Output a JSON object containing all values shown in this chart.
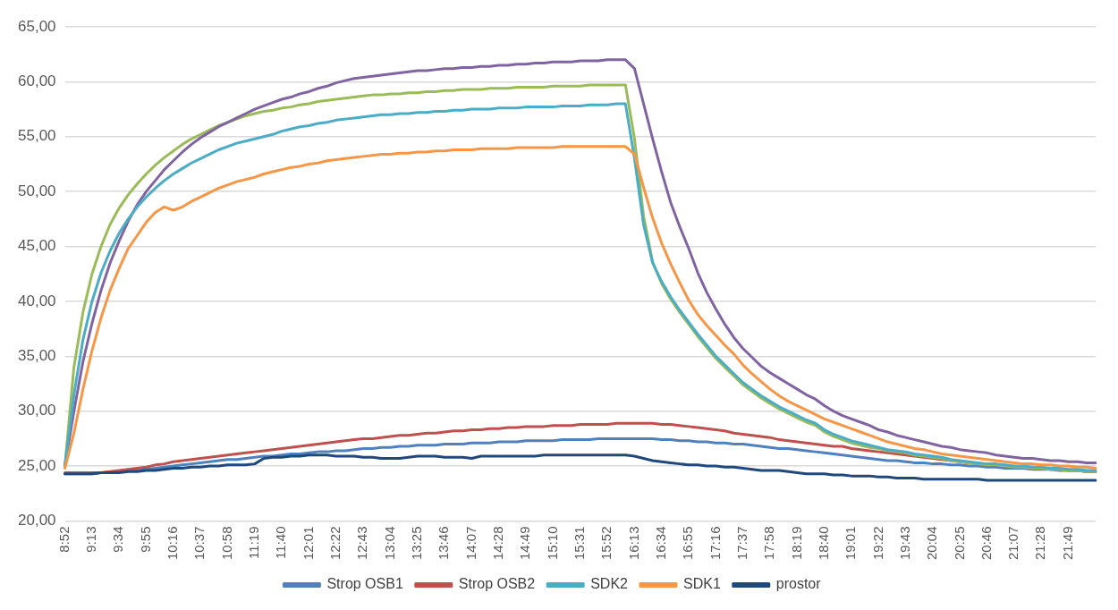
{
  "chart_data": {
    "type": "line",
    "categories": [
      "8:52",
      null,
      null,
      "9:13",
      null,
      null,
      "9:34",
      null,
      null,
      "9:55",
      null,
      null,
      "10:16",
      null,
      null,
      "10:37",
      null,
      null,
      "10:58",
      null,
      null,
      "11:19",
      null,
      null,
      "11:40",
      null,
      null,
      "12:01",
      null,
      null,
      "12:22",
      null,
      null,
      "12:43",
      null,
      null,
      "13:04",
      null,
      null,
      "13:25",
      null,
      null,
      "13:46",
      null,
      null,
      "14:07",
      null,
      null,
      "14:28",
      null,
      null,
      "14:49",
      null,
      null,
      "15:10",
      null,
      null,
      "15:31",
      null,
      null,
      "15:52",
      null,
      null,
      "16:13",
      null,
      null,
      "16:34",
      null,
      null,
      "16:55",
      null,
      null,
      "17:16",
      null,
      null,
      "17:37",
      null,
      null,
      "17:58",
      null,
      null,
      "18:19",
      null,
      null,
      "18:40",
      null,
      null,
      "19:01",
      null,
      null,
      "19:22",
      null,
      null,
      "19:43",
      null,
      null,
      "20:04",
      null,
      null,
      "20:25",
      null,
      null,
      "20:46",
      null,
      null,
      "21:07",
      null,
      null,
      "21:28",
      null,
      null,
      "21:49",
      null,
      null,
      null
    ],
    "series": [
      {
        "name": "Strop OSB1",
        "color": "#4f81bd",
        "values": [
          24.3,
          24.3,
          24.3,
          24.3,
          24.4,
          24.4,
          24.5,
          24.6,
          24.6,
          24.7,
          24.8,
          24.9,
          25.0,
          25.1,
          25.2,
          25.3,
          25.4,
          25.5,
          25.6,
          25.6,
          25.7,
          25.8,
          25.9,
          25.9,
          26.0,
          26.1,
          26.1,
          26.2,
          26.3,
          26.3,
          26.4,
          26.4,
          26.5,
          26.6,
          26.6,
          26.7,
          26.7,
          26.8,
          26.8,
          26.9,
          26.9,
          26.9,
          27.0,
          27.0,
          27.0,
          27.1,
          27.1,
          27.1,
          27.2,
          27.2,
          27.2,
          27.3,
          27.3,
          27.3,
          27.3,
          27.4,
          27.4,
          27.4,
          27.4,
          27.5,
          27.5,
          27.5,
          27.5,
          27.5,
          27.5,
          27.5,
          27.4,
          27.4,
          27.3,
          27.3,
          27.2,
          27.2,
          27.1,
          27.1,
          27.0,
          27.0,
          26.9,
          26.8,
          26.7,
          26.6,
          26.6,
          26.5,
          26.4,
          26.3,
          26.2,
          26.1,
          26.0,
          25.9,
          25.8,
          25.7,
          25.6,
          25.5,
          25.5,
          25.4,
          25.3,
          25.3,
          25.2,
          25.2,
          25.1,
          25.1,
          25.0,
          25.0,
          24.9,
          24.9,
          24.8,
          24.8,
          24.8,
          24.7,
          24.7,
          24.7,
          24.6,
          24.6,
          24.6,
          24.5,
          24.5
        ]
      },
      {
        "name": "Strop OSB2",
        "color": "#c0504d",
        "values": [
          24.4,
          24.4,
          24.4,
          24.4,
          24.4,
          24.5,
          24.6,
          24.7,
          24.8,
          24.9,
          25.1,
          25.2,
          25.4,
          25.5,
          25.6,
          25.7,
          25.8,
          25.9,
          26.0,
          26.1,
          26.2,
          26.3,
          26.4,
          26.5,
          26.6,
          26.7,
          26.8,
          26.9,
          27.0,
          27.1,
          27.2,
          27.3,
          27.4,
          27.5,
          27.5,
          27.6,
          27.7,
          27.8,
          27.8,
          27.9,
          28.0,
          28.0,
          28.1,
          28.2,
          28.2,
          28.3,
          28.3,
          28.4,
          28.4,
          28.5,
          28.5,
          28.6,
          28.6,
          28.6,
          28.7,
          28.7,
          28.7,
          28.8,
          28.8,
          28.8,
          28.8,
          28.9,
          28.9,
          28.9,
          28.9,
          28.9,
          28.8,
          28.8,
          28.7,
          28.6,
          28.5,
          28.4,
          28.3,
          28.2,
          28.0,
          27.9,
          27.8,
          27.7,
          27.6,
          27.4,
          27.3,
          27.2,
          27.1,
          27.0,
          26.9,
          26.8,
          26.8,
          26.6,
          26.5,
          26.4,
          26.3,
          26.2,
          26.1,
          26.0,
          25.9,
          25.8,
          25.7,
          25.6,
          25.5,
          25.4,
          25.3,
          25.2,
          25.1,
          25.1,
          25.0,
          24.9,
          24.9,
          24.8,
          24.8,
          24.7,
          24.7,
          24.6,
          24.6,
          24.5,
          24.5
        ]
      },
      {
        "color": "#9bbb59",
        "values": [
          25.0,
          34.0,
          39.0,
          42.5,
          45.0,
          47.0,
          48.5,
          49.7,
          50.7,
          51.6,
          52.4,
          53.1,
          53.7,
          54.3,
          54.8,
          55.2,
          55.6,
          56.0,
          56.3,
          56.6,
          56.9,
          57.1,
          57.3,
          57.4,
          57.6,
          57.7,
          57.9,
          58.0,
          58.2,
          58.3,
          58.4,
          58.5,
          58.6,
          58.7,
          58.8,
          58.8,
          58.9,
          58.9,
          59.0,
          59.0,
          59.1,
          59.1,
          59.2,
          59.2,
          59.3,
          59.3,
          59.3,
          59.4,
          59.4,
          59.4,
          59.5,
          59.5,
          59.5,
          59.5,
          59.6,
          59.6,
          59.6,
          59.6,
          59.7,
          59.7,
          59.7,
          59.7,
          59.7,
          54.8,
          47.8,
          43.6,
          41.6,
          40.2,
          39.0,
          37.9,
          36.8,
          35.8,
          34.8,
          34.0,
          33.2,
          32.4,
          31.8,
          31.2,
          30.7,
          30.2,
          29.8,
          29.4,
          29.0,
          28.7,
          28.1,
          27.7,
          27.4,
          27.1,
          26.9,
          26.7,
          26.6,
          26.4,
          26.3,
          26.2,
          26.0,
          25.9,
          25.8,
          25.7,
          25.5,
          25.4,
          25.3,
          25.2,
          25.1,
          25.1,
          25.0,
          24.9,
          24.9,
          24.8,
          24.8,
          24.7,
          24.7,
          24.6,
          24.6,
          24.5,
          24.5
        ]
      },
      {
        "color": "#8064a2",
        "values": [
          25.0,
          30.0,
          34.5,
          38.0,
          41.0,
          43.5,
          45.5,
          47.3,
          48.8,
          50.0,
          51.0,
          52.0,
          52.8,
          53.6,
          54.3,
          54.9,
          55.4,
          55.9,
          56.3,
          56.7,
          57.1,
          57.5,
          57.8,
          58.1,
          58.4,
          58.6,
          58.9,
          59.1,
          59.4,
          59.6,
          59.9,
          60.1,
          60.3,
          60.4,
          60.5,
          60.6,
          60.7,
          60.8,
          60.9,
          61.0,
          61.0,
          61.1,
          61.2,
          61.2,
          61.3,
          61.3,
          61.4,
          61.4,
          61.5,
          61.5,
          61.6,
          61.6,
          61.7,
          61.7,
          61.8,
          61.8,
          61.8,
          61.9,
          61.9,
          61.9,
          62.0,
          62.0,
          62.0,
          61.2,
          58.0,
          54.8,
          51.8,
          49.0,
          46.8,
          44.8,
          42.6,
          40.8,
          39.3,
          37.9,
          36.7,
          35.7,
          34.9,
          34.1,
          33.5,
          33.0,
          32.5,
          32.0,
          31.5,
          31.1,
          30.5,
          30.0,
          29.6,
          29.3,
          29.0,
          28.7,
          28.3,
          28.1,
          27.8,
          27.6,
          27.4,
          27.2,
          27.0,
          26.8,
          26.7,
          26.5,
          26.4,
          26.3,
          26.2,
          26.0,
          25.9,
          25.8,
          25.7,
          25.7,
          25.6,
          25.5,
          25.5,
          25.4,
          25.4,
          25.3,
          25.3
        ]
      },
      {
        "name": "SDK2",
        "color": "#4bacc6",
        "values": [
          25.0,
          31.5,
          36.5,
          40.0,
          42.6,
          44.6,
          46.2,
          47.5,
          48.6,
          49.5,
          50.3,
          51.0,
          51.6,
          52.1,
          52.6,
          53.0,
          53.4,
          53.8,
          54.1,
          54.4,
          54.6,
          54.8,
          55.0,
          55.2,
          55.5,
          55.7,
          55.9,
          56.0,
          56.2,
          56.3,
          56.5,
          56.6,
          56.7,
          56.8,
          56.9,
          57.0,
          57.0,
          57.1,
          57.1,
          57.2,
          57.2,
          57.3,
          57.3,
          57.4,
          57.4,
          57.5,
          57.5,
          57.5,
          57.6,
          57.6,
          57.6,
          57.7,
          57.7,
          57.7,
          57.7,
          57.8,
          57.8,
          57.8,
          57.9,
          57.9,
          57.9,
          58.0,
          58.0,
          53.0,
          47.0,
          43.5,
          41.8,
          40.4,
          39.2,
          38.1,
          37.0,
          36.0,
          35.0,
          34.2,
          33.4,
          32.6,
          32.0,
          31.4,
          30.9,
          30.4,
          30.0,
          29.6,
          29.2,
          28.9,
          28.3,
          27.9,
          27.6,
          27.3,
          27.1,
          26.9,
          26.7,
          26.5,
          26.4,
          26.3,
          26.1,
          26.0,
          25.9,
          25.8,
          25.6,
          25.5,
          25.4,
          25.3,
          25.2,
          25.2,
          25.1,
          25.0,
          25.0,
          24.9,
          24.9,
          24.8,
          24.8,
          24.7,
          24.7,
          24.6,
          24.6
        ]
      },
      {
        "name": "SDK1",
        "color": "#f79646",
        "values": [
          24.8,
          28.0,
          32.0,
          35.5,
          38.5,
          41.0,
          43.0,
          44.8,
          46.0,
          47.2,
          48.1,
          48.6,
          48.3,
          48.6,
          49.1,
          49.5,
          49.9,
          50.3,
          50.6,
          50.9,
          51.1,
          51.3,
          51.6,
          51.8,
          52.0,
          52.2,
          52.3,
          52.5,
          52.6,
          52.8,
          52.9,
          53.0,
          53.1,
          53.2,
          53.3,
          53.4,
          53.4,
          53.5,
          53.5,
          53.6,
          53.6,
          53.7,
          53.7,
          53.8,
          53.8,
          53.8,
          53.9,
          53.9,
          53.9,
          53.9,
          54.0,
          54.0,
          54.0,
          54.0,
          54.0,
          54.1,
          54.1,
          54.1,
          54.1,
          54.1,
          54.1,
          54.1,
          54.1,
          53.4,
          50.4,
          47.6,
          45.3,
          43.4,
          41.7,
          40.1,
          38.8,
          37.8,
          36.9,
          36.0,
          35.2,
          34.2,
          33.4,
          32.7,
          32.0,
          31.4,
          30.9,
          30.5,
          30.1,
          29.7,
          29.3,
          29.0,
          28.7,
          28.4,
          28.1,
          27.8,
          27.5,
          27.2,
          27.0,
          26.8,
          26.6,
          26.5,
          26.3,
          26.1,
          26.0,
          25.9,
          25.8,
          25.7,
          25.6,
          25.5,
          25.4,
          25.3,
          25.2,
          25.2,
          25.1,
          25.1,
          25.0,
          25.0,
          24.9,
          24.9,
          24.8
        ]
      },
      {
        "name": "prostor",
        "color": "#1f497d",
        "values": [
          24.3,
          24.3,
          24.3,
          24.3,
          24.4,
          24.4,
          24.4,
          24.5,
          24.5,
          24.6,
          24.6,
          24.7,
          24.8,
          24.8,
          24.9,
          24.9,
          25.0,
          25.0,
          25.1,
          25.1,
          25.1,
          25.2,
          25.7,
          25.8,
          25.8,
          25.9,
          25.9,
          26.0,
          26.0,
          26.0,
          25.9,
          25.9,
          25.9,
          25.8,
          25.8,
          25.7,
          25.7,
          25.7,
          25.8,
          25.9,
          25.9,
          25.9,
          25.8,
          25.8,
          25.8,
          25.7,
          25.9,
          25.9,
          25.9,
          25.9,
          25.9,
          25.9,
          25.9,
          26.0,
          26.0,
          26.0,
          26.0,
          26.0,
          26.0,
          26.0,
          26.0,
          26.0,
          26.0,
          25.9,
          25.7,
          25.5,
          25.4,
          25.3,
          25.2,
          25.1,
          25.1,
          25.0,
          25.0,
          24.9,
          24.9,
          24.8,
          24.7,
          24.6,
          24.6,
          24.6,
          24.5,
          24.4,
          24.3,
          24.3,
          24.3,
          24.2,
          24.2,
          24.1,
          24.1,
          24.1,
          24.0,
          24.0,
          23.9,
          23.9,
          23.9,
          23.8,
          23.8,
          23.8,
          23.8,
          23.8,
          23.8,
          23.8,
          23.7,
          23.7,
          23.7,
          23.7,
          23.7,
          23.7,
          23.7,
          23.7,
          23.7,
          23.7,
          23.7,
          23.7,
          23.7
        ]
      }
    ],
    "ylim": [
      20,
      65
    ],
    "yticks": [
      {
        "value": 20,
        "label": "20,00"
      },
      {
        "value": 25,
        "label": "25,00"
      },
      {
        "value": 30,
        "label": "30,00"
      },
      {
        "value": 35,
        "label": "35,00"
      },
      {
        "value": 40,
        "label": "40,00"
      },
      {
        "value": 45,
        "label": "45,00"
      },
      {
        "value": 50,
        "label": "50,00"
      },
      {
        "value": 55,
        "label": "55,00"
      },
      {
        "value": 60,
        "label": "60,00"
      },
      {
        "value": 65,
        "label": "65,00"
      }
    ],
    "grid": "y",
    "legend": "bottom",
    "marker": "none",
    "line_style": "solid"
  }
}
